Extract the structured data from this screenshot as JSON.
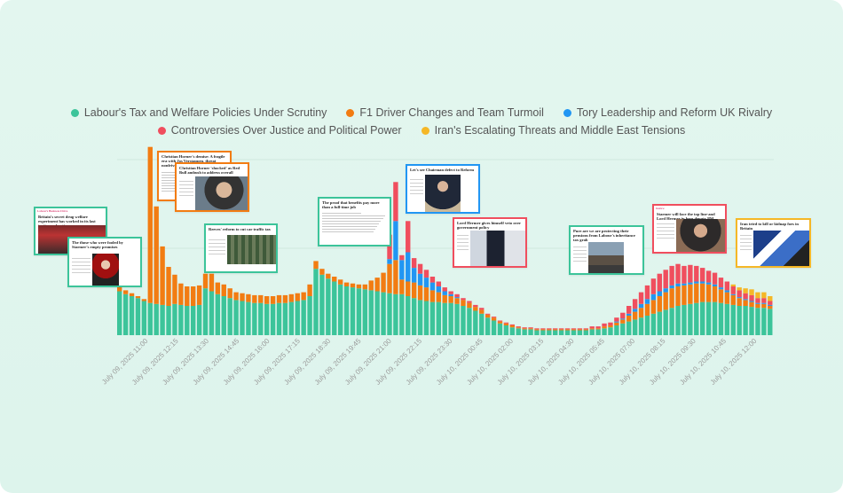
{
  "chart_data": {
    "type": "bar",
    "stacked": true,
    "series": [
      {
        "name": "Labour's Tax and Welfare Policies Under Scrutiny",
        "color": "#3cc49a",
        "values": [
          45,
          42,
          40,
          38,
          35,
          33,
          32,
          31,
          30,
          32,
          31,
          30,
          30,
          31,
          48,
          45,
          42,
          40,
          38,
          36,
          35,
          34,
          33,
          33,
          32,
          32,
          33,
          33,
          34,
          35,
          36,
          40,
          68,
          62,
          58,
          55,
          52,
          50,
          49,
          48,
          47,
          46,
          45,
          44,
          43,
          42,
          42,
          40,
          38,
          36,
          35,
          34,
          34,
          33,
          33,
          32,
          30,
          28,
          25,
          22,
          18,
          15,
          12,
          10,
          8,
          7,
          6,
          6,
          5,
          5,
          5,
          5,
          5,
          5,
          5,
          5,
          5,
          6,
          6,
          7,
          8,
          10,
          12,
          14,
          16,
          18,
          20,
          22,
          24,
          26,
          28,
          30,
          31,
          32,
          33,
          34,
          34,
          34,
          33,
          32,
          31,
          30,
          30,
          29,
          28,
          28,
          27
        ]
      },
      {
        "name": "F1 Driver Changes and Team Turmoil",
        "color": "#f27c12",
        "values": [
          5,
          4,
          3,
          2,
          2,
          160,
          100,
          60,
          40,
          30,
          22,
          20,
          20,
          20,
          15,
          18,
          12,
          12,
          10,
          8,
          8,
          8,
          8,
          8,
          8,
          8,
          8,
          8,
          8,
          8,
          8,
          12,
          8,
          6,
          5,
          5,
          5,
          4,
          4,
          4,
          5,
          10,
          14,
          20,
          30,
          35,
          15,
          15,
          16,
          15,
          14,
          12,
          10,
          8,
          7,
          6,
          6,
          5,
          4,
          4,
          3,
          3,
          2,
          2,
          2,
          1,
          1,
          1,
          1,
          1,
          1,
          1,
          1,
          1,
          1,
          1,
          1,
          1,
          1,
          2,
          2,
          3,
          4,
          6,
          8,
          10,
          12,
          14,
          16,
          18,
          20,
          20,
          20,
          20,
          20,
          19,
          18,
          16,
          14,
          12,
          10,
          8,
          6,
          5,
          4,
          4,
          3
        ]
      },
      {
        "name": "Tory Leadership and Reform UK Rivalry",
        "color": "#2196f3",
        "values": [
          0,
          0,
          0,
          0,
          0,
          0,
          0,
          0,
          0,
          0,
          0,
          0,
          0,
          0,
          0,
          0,
          0,
          0,
          0,
          0,
          0,
          0,
          0,
          0,
          0,
          0,
          0,
          0,
          0,
          0,
          0,
          0,
          0,
          0,
          0,
          0,
          0,
          0,
          0,
          0,
          0,
          0,
          0,
          0,
          5,
          40,
          20,
          30,
          15,
          12,
          10,
          8,
          6,
          4,
          2,
          1,
          0,
          0,
          0,
          0,
          0,
          0,
          0,
          0,
          0,
          0,
          0,
          0,
          0,
          0,
          0,
          0,
          0,
          0,
          0,
          0,
          0,
          0,
          0,
          0,
          0,
          1,
          1,
          2,
          3,
          4,
          5,
          6,
          5,
          4,
          3,
          3,
          2,
          2,
          2,
          2,
          2,
          2,
          2,
          2,
          1,
          1,
          1,
          1,
          1,
          1,
          1
        ]
      },
      {
        "name": "Controversies Over Justice and Political Power",
        "color": "#f04e5e",
        "values": [
          0,
          0,
          0,
          0,
          0,
          0,
          0,
          0,
          0,
          0,
          0,
          0,
          0,
          0,
          0,
          0,
          0,
          0,
          0,
          0,
          0,
          0,
          0,
          0,
          0,
          0,
          0,
          0,
          0,
          0,
          0,
          0,
          0,
          0,
          0,
          0,
          0,
          0,
          0,
          0,
          0,
          0,
          0,
          0,
          25,
          40,
          5,
          32,
          10,
          10,
          8,
          6,
          5,
          4,
          3,
          3,
          2,
          2,
          2,
          2,
          1,
          1,
          1,
          1,
          1,
          1,
          1,
          1,
          1,
          1,
          1,
          1,
          1,
          1,
          1,
          1,
          1,
          2,
          2,
          3,
          3,
          4,
          6,
          8,
          10,
          12,
          14,
          16,
          18,
          19,
          20,
          20,
          18,
          18,
          16,
          14,
          12,
          12,
          10,
          9,
          8,
          7,
          6,
          6,
          5,
          5,
          4
        ]
      },
      {
        "name": "Iran's Escalating Threats and Middle East Tensions",
        "color": "#f5b726",
        "values": [
          0,
          0,
          0,
          0,
          0,
          0,
          0,
          0,
          0,
          0,
          0,
          0,
          0,
          0,
          0,
          0,
          0,
          0,
          0,
          0,
          0,
          0,
          0,
          0,
          0,
          0,
          0,
          0,
          0,
          0,
          0,
          0,
          0,
          0,
          0,
          0,
          0,
          0,
          0,
          0,
          0,
          0,
          0,
          0,
          0,
          0,
          0,
          0,
          0,
          0,
          0,
          0,
          0,
          0,
          0,
          0,
          0,
          0,
          0,
          0,
          0,
          0,
          0,
          0,
          0,
          0,
          0,
          0,
          0,
          0,
          0,
          0,
          0,
          0,
          0,
          0,
          0,
          0,
          0,
          0,
          0,
          0,
          0,
          0,
          0,
          0,
          0,
          0,
          0,
          0,
          0,
          0,
          0,
          0,
          0,
          0,
          0,
          0,
          0,
          0,
          2,
          3,
          5,
          6,
          6,
          6,
          5
        ]
      }
    ],
    "xtick_labels": [
      "July 09, 2025 11:00",
      "July 09, 2025 12:15",
      "July 09, 2025 13:30",
      "July 09, 2025 14:45",
      "July 09, 2025 16:00",
      "July 09, 2025 17:15",
      "July 09, 2025 18:30",
      "July 09, 2025 19:45",
      "July 09, 2025 21:00",
      "July 09, 2025 22:15",
      "July 09, 2025 23:30",
      "July 10, 2025 00:45",
      "July 10, 2025 02:00",
      "July 10, 2025 03:15",
      "July 10, 2025 04:30",
      "July 10, 2025 05:45",
      "July 10, 2025 07:00",
      "July 10, 2025 08:15",
      "July 10, 2025 09:30",
      "July 10, 2025 10:45",
      "July 10, 2025 12:00"
    ],
    "legend_position": "top-center",
    "grid": false
  },
  "articles": [
    {
      "kicker": "Labour's Business Drive",
      "headline": "Britain's secret drug welfare experiment has worked in its last tactics real-action",
      "series": "Labour's Tax and Welfare Policies Under Scrutiny",
      "photo": "crowd"
    },
    {
      "headline": "The those who were fooled by Starmer's empty promises",
      "series": "Labour's Tax and Welfare Policies Under Scrutiny",
      "photo": "redbox"
    },
    {
      "headline": "Christian Horner's demise: A fragile era with Jos Verstappen, threat nonfrivolous fold",
      "series": "F1 Driver Changes and Team Turmoil",
      "photo": "none"
    },
    {
      "headline": "Christian Horner 'shocked' as Red Bull ambush to address overall",
      "series": "F1 Driver Changes and Team Turmoil",
      "photo": "portrait"
    },
    {
      "headline": "Reeves' reform to cut car traffic tax",
      "series": "Labour's Tax and Welfare Policies Under Scrutiny",
      "photo": "commons"
    },
    {
      "headline": "The proof that benefits pay more than a full-time job",
      "series": "Labour's Tax and Welfare Policies Under Scrutiny",
      "photo": "none"
    },
    {
      "headline": "Let's see Chairman defect to Reform",
      "series": "Tory Leadership and Reform UK Rivalry",
      "photo": "suit"
    },
    {
      "headline": "Lord Hermer gives himself veto over government policy",
      "series": "Controversies Over Justice and Political Power",
      "photo": "walk"
    },
    {
      "headline": "Pure are we are protecting their pensions from Labour's inheritance tax grab",
      "series": "Labour's Tax and Welfare Policies Under Scrutiny",
      "photo": "street"
    },
    {
      "kicker": "Justice",
      "headline": "Starmer will face the top line-and Lord Hermer in here deputy PM",
      "series": "Controversies Over Justice and Political Power",
      "photo": "man"
    },
    {
      "headline": "Iran tried to kill or kidnap foes in Britain",
      "series": "Iran's Escalating Threats and Middle East Tensions",
      "photo": "flags"
    }
  ]
}
